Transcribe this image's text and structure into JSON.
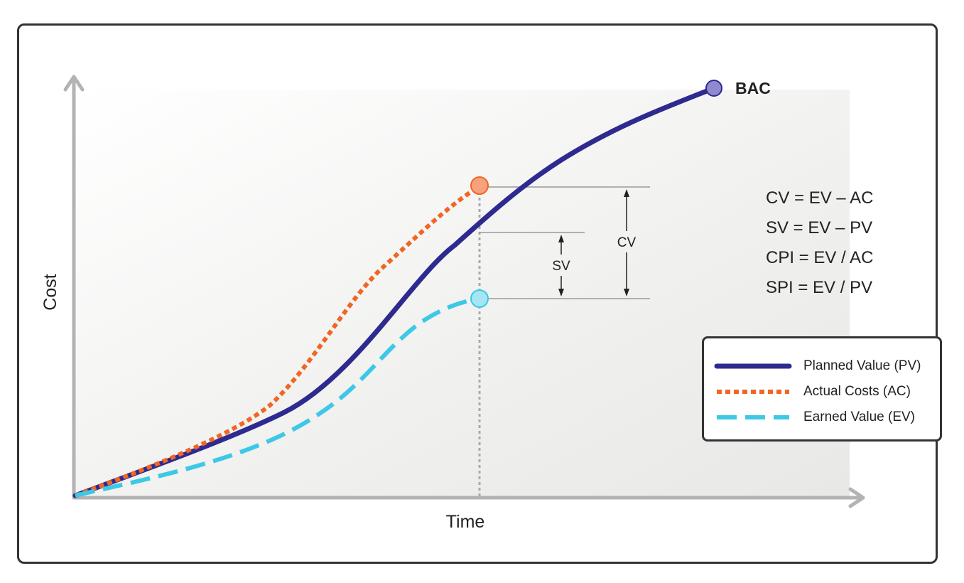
{
  "axes": {
    "x_label": "Time",
    "y_label": "Cost"
  },
  "markers": {
    "bac_label": "BAC"
  },
  "variances": {
    "sv_label": "SV",
    "cv_label": "CV"
  },
  "equations": [
    "CV = EV – AC",
    "SV = EV – PV",
    "CPI = EV / AC",
    "SPI = EV / PV"
  ],
  "legend": {
    "items": [
      {
        "label": "Planned Value (PV)",
        "color": "#2e2a8f",
        "style": "solid"
      },
      {
        "label": "Actual Costs (AC)",
        "color": "#f26522",
        "style": "dotted"
      },
      {
        "label": "Earned Value (EV)",
        "color": "#3dc8e6",
        "style": "dashed"
      }
    ]
  },
  "colors": {
    "pv": "#2e2a8f",
    "ac": "#f26522",
    "ev": "#3dc8e6",
    "bac_marker": "#8e8ad0",
    "ac_marker": "#f7a27c",
    "ev_marker": "#a6e6f4",
    "axis": "#b3b3b3"
  }
}
